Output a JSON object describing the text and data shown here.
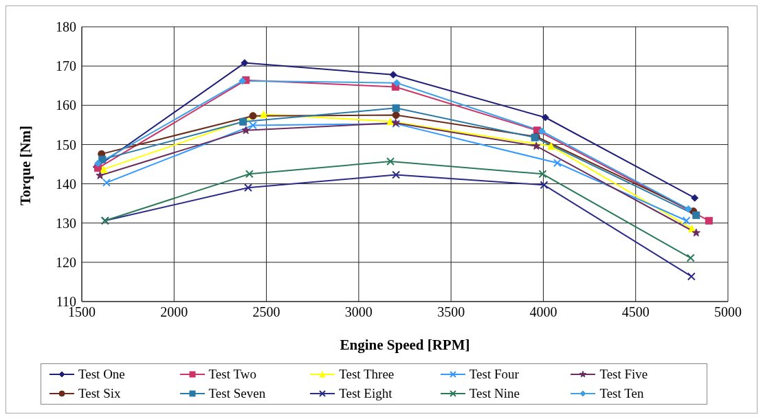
{
  "chart_data": {
    "type": "line",
    "xlabel": "Engine Speed [RPM]",
    "ylabel": "Torque [Nm]",
    "xlim": [
      1500,
      5000
    ],
    "xticks": [
      1500,
      2000,
      2500,
      3000,
      3500,
      4000,
      4500,
      5000
    ],
    "ylim": [
      110,
      180
    ],
    "yticks": [
      110,
      120,
      130,
      140,
      150,
      160,
      170,
      180
    ],
    "grid": true,
    "legend": "bottom",
    "line_style": "solid",
    "series": [
      {
        "name": "Test One",
        "color": "#1f1f7a",
        "marker": "diamond",
        "x": [
          1580,
          2382,
          3187,
          4011,
          4820
        ],
        "values": [
          144.3,
          170.8,
          167.8,
          156.9,
          136.4
        ]
      },
      {
        "name": "Test Two",
        "color": "#cc3366",
        "marker": "square",
        "x": [
          1588,
          2389,
          3199,
          3966,
          4897
        ],
        "values": [
          144.0,
          166.4,
          164.7,
          153.6,
          130.6
        ]
      },
      {
        "name": "Test Three",
        "color": "#ffff00",
        "marker": "triangle",
        "x": [
          1618,
          2485,
          3172,
          4042,
          4805
        ],
        "values": [
          143.7,
          157.7,
          155.9,
          149.6,
          128.6
        ]
      },
      {
        "name": "Test Four",
        "color": "#3399ff",
        "marker": "cross",
        "x": [
          1634,
          2427,
          3202,
          4076,
          4775
        ],
        "values": [
          140.3,
          154.9,
          155.3,
          145.3,
          130.6
        ]
      },
      {
        "name": "Test Five",
        "color": "#6b2d5c",
        "marker": "star",
        "x": [
          1599,
          2389,
          3200,
          3962,
          4828
        ],
        "values": [
          142.1,
          153.6,
          155.5,
          149.6,
          127.5
        ]
      },
      {
        "name": "Test Six",
        "color": "#6b2b1a",
        "marker": "circle",
        "x": [
          1607,
          2427,
          3202,
          3962,
          4813
        ],
        "values": [
          147.6,
          157.3,
          157.5,
          152.0,
          133.0
        ]
      },
      {
        "name": "Test Seven",
        "color": "#2a7aa8",
        "marker": "square",
        "x": [
          1611,
          2374,
          3202,
          3954,
          4828
        ],
        "values": [
          146.2,
          155.8,
          159.3,
          151.8,
          132.0
        ]
      },
      {
        "name": "Test Eight",
        "color": "#2b2b8a",
        "marker": "cross",
        "x": [
          1626,
          2401,
          3202,
          4004,
          4802
        ],
        "values": [
          130.6,
          139.0,
          142.3,
          139.7,
          116.4
        ]
      },
      {
        "name": "Test Nine",
        "color": "#2a7a5a",
        "marker": "cross",
        "x": [
          1626,
          2408,
          3172,
          3996,
          4798
        ],
        "values": [
          130.6,
          142.5,
          145.7,
          142.5,
          121.1
        ]
      },
      {
        "name": "Test Ten",
        "color": "#3fa0e8",
        "marker": "diamond",
        "x": [
          1588,
          2370,
          3206,
          3992,
          4786
        ],
        "values": [
          145.2,
          166.2,
          165.7,
          153.4,
          133.6
        ]
      }
    ]
  }
}
